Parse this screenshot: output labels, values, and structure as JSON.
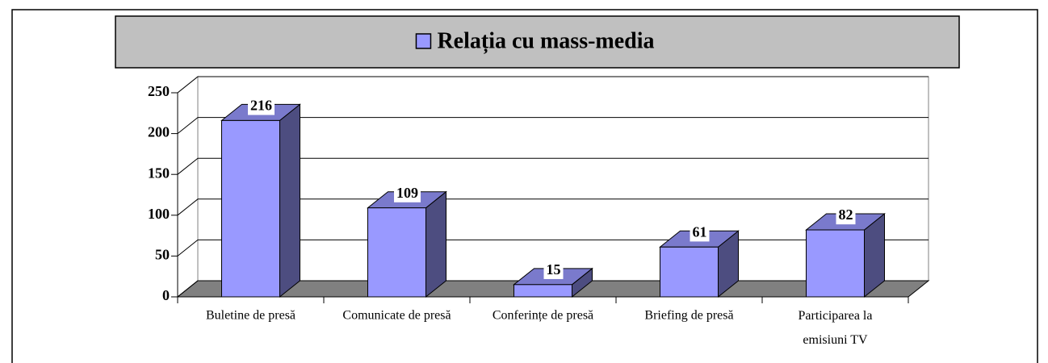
{
  "chart_data": {
    "type": "bar",
    "title": "Relația cu mass-media",
    "categories": [
      "Buletine de presă",
      "Comunicate de presă",
      "Conferințe de presă",
      "Briefing de presă",
      "Participarea la emisiuni TV"
    ],
    "values": [
      216,
      109,
      15,
      61,
      82
    ],
    "color": "#9999ff",
    "ylim": [
      0,
      250
    ],
    "yticks": [
      0,
      50,
      100,
      150,
      200,
      250
    ],
    "grid": true
  }
}
